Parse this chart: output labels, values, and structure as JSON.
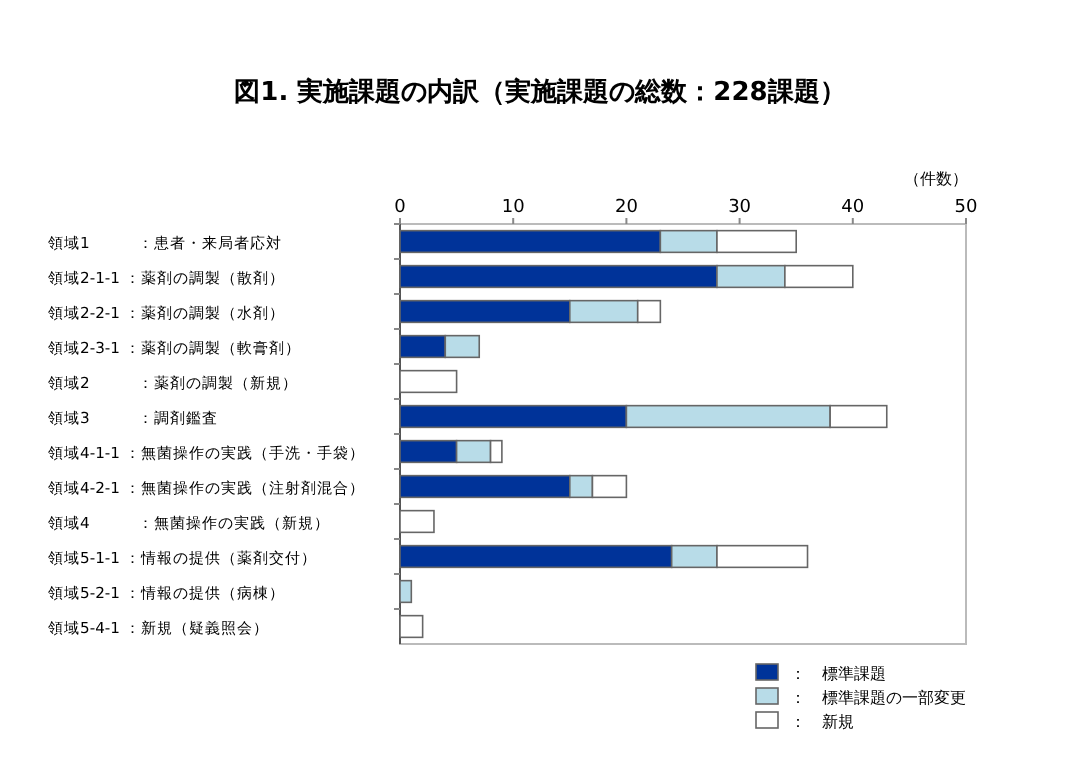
{
  "chart_data": {
    "type": "bar",
    "orientation": "horizontal",
    "stacked": true,
    "title": "図1. 実施課題の内訳（実施課題の総数：228課題）",
    "xlabel": "（件数）",
    "categories": [
      "領域1　　　：患者・来局者応対",
      "領域2-1-1 ：薬剤の調製（散剤）",
      "領域2-2-1 ：薬剤の調製（水剤）",
      "領域2-3-1 ：薬剤の調製（軟膏剤）",
      "領域2　　　：薬剤の調製（新規）",
      "領域3　　　：調剤鑑査",
      "領域4-1-1 ：無菌操作の実践（手洗・手袋）",
      "領域4-2-1 ：無菌操作の実践（注射剤混合）",
      "領域4　　　：無菌操作の実践（新規）",
      "領域5-1-1 ：情報の提供（薬剤交付）",
      "領域5-2-1 ：情報の提供（病棟）",
      "領域5-4-1 ：新規（疑義照会）"
    ],
    "series": [
      {
        "name": "：　標準課題",
        "color": "#003399",
        "values": [
          23,
          28,
          15,
          4,
          0,
          20,
          5,
          15,
          0,
          24,
          0,
          0
        ]
      },
      {
        "name": "：　標準課題の一部変更",
        "color": "#b8dce8",
        "values": [
          5,
          6,
          6,
          3,
          0,
          18,
          3,
          2,
          0,
          4,
          1,
          0
        ]
      },
      {
        "name": "：　新規",
        "color": "#ffffff",
        "values": [
          7,
          6,
          2,
          0,
          5,
          5,
          1,
          3,
          3,
          8,
          0,
          2
        ]
      }
    ],
    "xlim": [
      0,
      50
    ],
    "xticks": [
      0,
      10,
      20,
      30,
      40,
      50
    ],
    "grid": false,
    "legend": "bottom right"
  }
}
